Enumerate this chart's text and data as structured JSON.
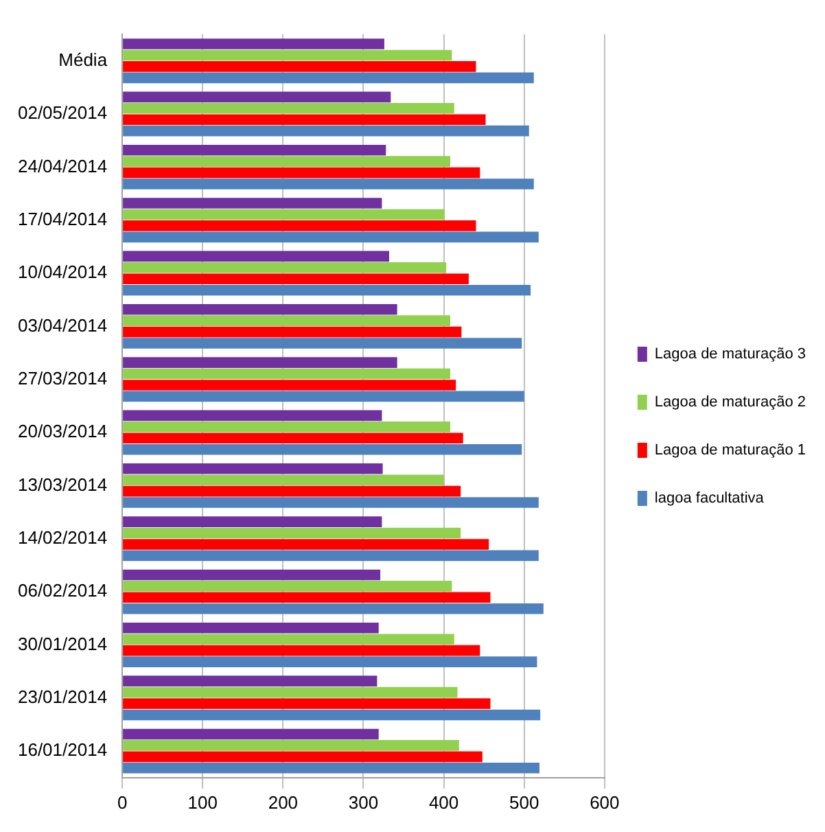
{
  "chart_data": {
    "type": "bar",
    "orientation": "horizontal",
    "categories": [
      "Média",
      "02/05/2014",
      "24/04/2014",
      "17/04/2014",
      "10/04/2014",
      "03/04/2014",
      "27/03/2014",
      "20/03/2014",
      "13/03/2014",
      "14/02/2014",
      "06/02/2014",
      "30/01/2014",
      "23/01/2014",
      "16/01/2014"
    ],
    "series": [
      {
        "name": "Lagoa de maturação 3",
        "color": "#7030a0",
        "values": [
          326,
          334,
          328,
          323,
          332,
          342,
          342,
          323,
          324,
          323,
          321,
          319,
          317,
          319
        ]
      },
      {
        "name": "Lagoa de maturação 2",
        "color": "#92d050",
        "values": [
          410,
          413,
          408,
          401,
          403,
          408,
          408,
          408,
          400,
          421,
          410,
          413,
          417,
          419
        ]
      },
      {
        "name": "Lagoa de maturação 1",
        "color": "#ff0000",
        "values": [
          440,
          452,
          445,
          440,
          431,
          422,
          415,
          424,
          421,
          456,
          458,
          445,
          458,
          448
        ]
      },
      {
        "name": "lagoa facultativa",
        "color": "#4f81bd",
        "values": [
          512,
          506,
          512,
          518,
          508,
          497,
          500,
          497,
          518,
          518,
          524,
          516,
          520,
          519
        ]
      }
    ],
    "xlim": [
      0,
      600
    ],
    "xticks": [
      0,
      100,
      200,
      300,
      400,
      500,
      600
    ],
    "grid": "x",
    "legend": "right"
  }
}
